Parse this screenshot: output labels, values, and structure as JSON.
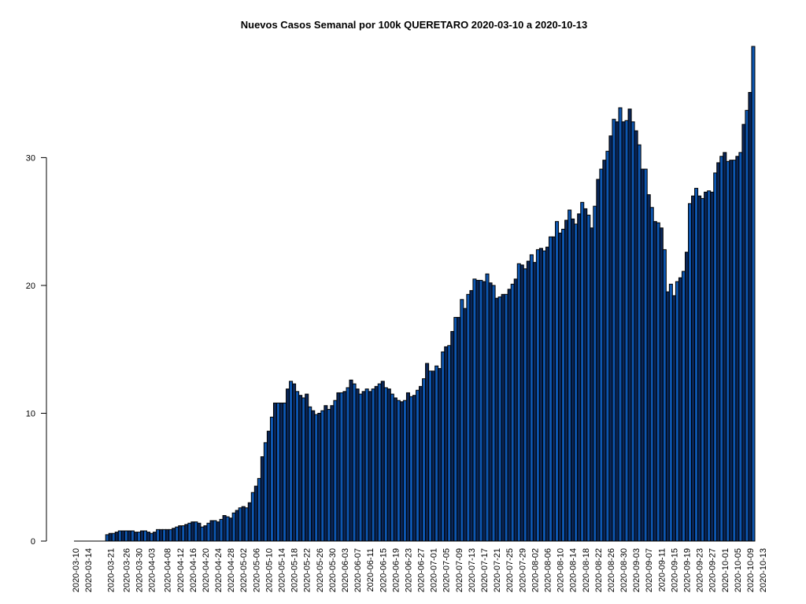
{
  "chart_data": {
    "type": "bar",
    "title": "Nuevos Casos Semanal por 100k QUERETARO 2020-03-10 a 2020-10-13",
    "xlabel": "",
    "ylabel": "",
    "start_date": "2020-03-10",
    "end_date": "2020-10-13",
    "ylim": [
      0,
      38.7
    ],
    "y_ticks": [
      0,
      10,
      20,
      30
    ],
    "x_tick_labels": [
      "2020-03-10",
      "2020-03-14",
      "2020-03-21",
      "2020-03-26",
      "2020-03-30",
      "2020-04-03",
      "2020-04-08",
      "2020-04-12",
      "2020-04-16",
      "2020-04-20",
      "2020-04-24",
      "2020-04-28",
      "2020-05-02",
      "2020-05-06",
      "2020-05-10",
      "2020-05-14",
      "2020-05-18",
      "2020-05-22",
      "2020-05-26",
      "2020-05-30",
      "2020-06-03",
      "2020-06-07",
      "2020-06-11",
      "2020-06-15",
      "2020-06-19",
      "2020-06-23",
      "2020-06-27",
      "2020-07-01",
      "2020-07-05",
      "2020-07-09",
      "2020-07-13",
      "2020-07-17",
      "2020-07-21",
      "2020-07-25",
      "2020-07-29",
      "2020-08-02",
      "2020-08-06",
      "2020-08-10",
      "2020-08-14",
      "2020-08-18",
      "2020-08-22",
      "2020-08-26",
      "2020-08-30",
      "2020-09-03",
      "2020-09-07",
      "2020-09-11",
      "2020-09-15",
      "2020-09-19",
      "2020-09-23",
      "2020-09-27",
      "2020-10-01",
      "2020-10-05",
      "2020-10-09",
      "2020-10-13"
    ],
    "bar_colors": [
      "#0d56b0",
      "#0a2658"
    ],
    "values": [
      0,
      0,
      0,
      0,
      0,
      0,
      0,
      0,
      0,
      0,
      0.5,
      0.6,
      0.6,
      0.7,
      0.8,
      0.8,
      0.8,
      0.8,
      0.8,
      0.7,
      0.7,
      0.8,
      0.8,
      0.7,
      0.6,
      0.7,
      0.9,
      0.9,
      0.9,
      0.9,
      0.9,
      1.0,
      1.1,
      1.2,
      1.2,
      1.3,
      1.4,
      1.5,
      1.5,
      1.4,
      1.1,
      1.2,
      1.4,
      1.6,
      1.6,
      1.5,
      1.7,
      2.0,
      1.9,
      1.8,
      2.2,
      2.4,
      2.6,
      2.7,
      2.6,
      3.0,
      3.8,
      4.3,
      4.9,
      6.6,
      7.7,
      8.6,
      9.7,
      10.8,
      10.8,
      10.8,
      10.8,
      11.9,
      12.5,
      12.3,
      11.7,
      11.4,
      11.2,
      11.5,
      10.5,
      10.2,
      9.9,
      10.0,
      10.2,
      10.6,
      10.3,
      10.6,
      11.0,
      11.6,
      11.6,
      11.7,
      12.0,
      12.6,
      12.3,
      11.9,
      11.5,
      11.7,
      11.9,
      11.7,
      11.9,
      12.1,
      12.3,
      12.5,
      12.0,
      11.9,
      11.5,
      11.2,
      11.0,
      10.9,
      11.0,
      11.6,
      11.3,
      11.4,
      11.8,
      12.1,
      12.7,
      13.9,
      13.3,
      13.3,
      13.7,
      13.5,
      14.8,
      15.2,
      15.3,
      16.4,
      17.5,
      17.5,
      18.9,
      18.2,
      19.3,
      19.6,
      20.5,
      20.4,
      20.4,
      20.3,
      20.9,
      20.2,
      20.0,
      19.0,
      19.1,
      19.3,
      19.3,
      19.7,
      20.1,
      20.5,
      21.7,
      21.6,
      21.3,
      21.9,
      22.4,
      21.8,
      22.8,
      22.9,
      22.7,
      23.0,
      23.8,
      23.8,
      25.0,
      24.1,
      24.4,
      25.1,
      25.9,
      25.2,
      24.8,
      25.6,
      26.5,
      26.0,
      25.5,
      24.5,
      26.2,
      28.3,
      29.1,
      29.8,
      30.5,
      31.7,
      33.0,
      32.8,
      33.9,
      32.8,
      32.9,
      33.8,
      32.8,
      32.1,
      31.0,
      29.1,
      29.1,
      27.1,
      26.1,
      25.0,
      24.9,
      24.5,
      22.8,
      19.5,
      20.1,
      19.2,
      20.3,
      20.6,
      21.1,
      22.6,
      26.4,
      27.0,
      27.6,
      27.0,
      26.8,
      27.3,
      27.4,
      27.3,
      28.8,
      29.6,
      30.1,
      30.4,
      29.7,
      29.8,
      29.8,
      30.1,
      30.4,
      32.6,
      33.7,
      35.1,
      38.7
    ]
  }
}
